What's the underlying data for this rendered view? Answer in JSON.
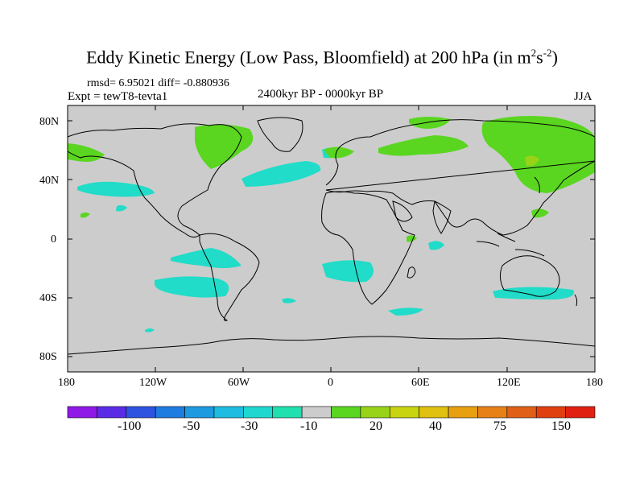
{
  "title": {
    "main": "Eddy Kinetic Energy (Low Pass, Bloomfield) at 200 hPa (in m",
    "sup1": "2",
    "mid": "s",
    "sup2": "-2",
    "end": ")"
  },
  "stats": "rmsd= 6.95021 diff= -0.880936",
  "expt": "Expt = tewT8-tevta1",
  "period": "2400kyr BP - 0000kyr BP",
  "season": "JJA",
  "map": {
    "lat_ticks": [
      "80N",
      "40N",
      "0",
      "40S",
      "80S"
    ],
    "lon_ticks": [
      "180",
      "120W",
      "60W",
      "0",
      "60E",
      "120E",
      "180"
    ],
    "background_color": "#cccccc",
    "coastline_color": "#000000"
  },
  "colorbar": {
    "colors": [
      "#8f19e6",
      "#5a2ce6",
      "#2e53e0",
      "#1e7be0",
      "#1e9be0",
      "#1ebce0",
      "#1ed8d0",
      "#20e0b0",
      "#cccccc",
      "#5ad620",
      "#98d318",
      "#c8d410",
      "#e0c010",
      "#e8a010",
      "#e88018",
      "#e06018",
      "#e04010",
      "#e02010"
    ],
    "labels": [
      "-100",
      "-50",
      "-30",
      "-10",
      "20",
      "40",
      "75",
      "150"
    ]
  }
}
